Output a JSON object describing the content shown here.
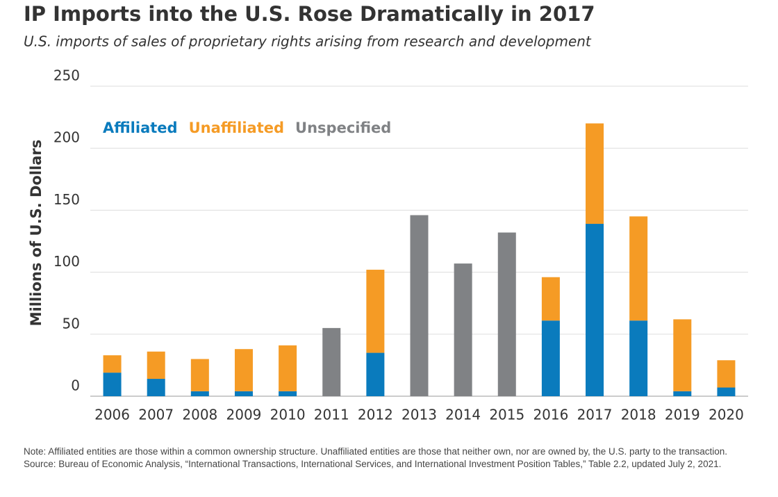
{
  "chart_data": {
    "type": "stacked_bar",
    "title": "IP Imports into the U.S. Rose Dramatically in 2017",
    "subtitle": "U.S. imports of sales of proprietary rights arising from research and development",
    "y_label": "Millions of U.S. Dollars",
    "categories": [
      "2006",
      "2007",
      "2008",
      "2009",
      "2010",
      "2011",
      "2012",
      "2013",
      "2014",
      "2015",
      "2016",
      "2017",
      "2018",
      "2019",
      "2020"
    ],
    "series": [
      {
        "name": "Affiliated",
        "color": "#0a7bbd",
        "values": [
          19,
          14,
          4,
          4,
          4,
          null,
          35,
          null,
          null,
          null,
          61,
          139,
          61,
          4,
          7
        ]
      },
      {
        "name": "Unaffiliated",
        "color": "#f59b25",
        "values": [
          14,
          22,
          26,
          34,
          37,
          null,
          67,
          null,
          null,
          null,
          35,
          81,
          84,
          58,
          22
        ]
      },
      {
        "name": "Unspecified",
        "color": "#808285",
        "values": [
          null,
          null,
          null,
          null,
          null,
          55,
          null,
          146,
          107,
          132,
          null,
          null,
          null,
          null,
          null
        ]
      }
    ],
    "ylim": [
      0,
      250
    ],
    "yticks": [
      0,
      50,
      100,
      150,
      200,
      250
    ],
    "grid": true,
    "legend": "top-left",
    "note": "Note: Affiliated entities are those within a common ownership structure. Unaffiliated entities are those that neither own, nor are owned by, the U.S. party to the transaction.",
    "source": "Source: Bureau of Economic Analysis, “International Transactions, International Services, and International Investment Position Tables,” Table 2.2, updated July 2, 2021."
  }
}
